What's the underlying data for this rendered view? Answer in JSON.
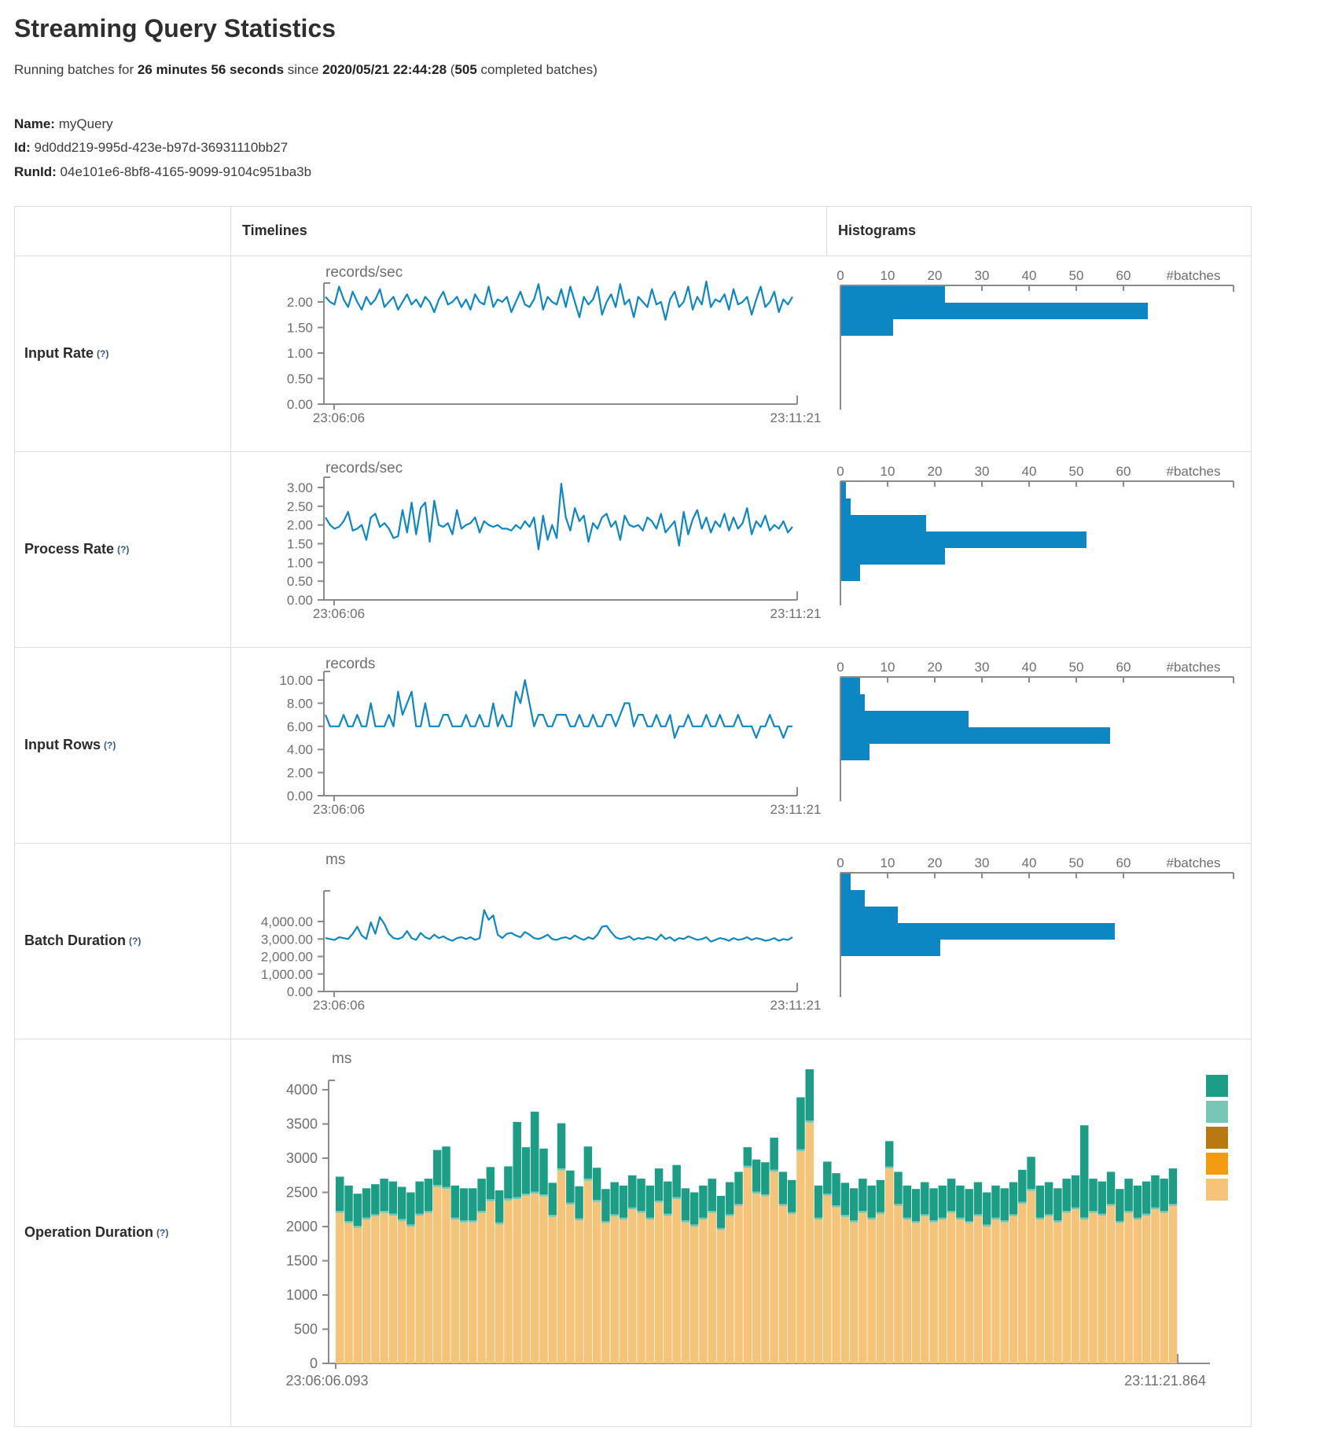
{
  "page": {
    "title": "Streaming Query Statistics"
  },
  "status_line": {
    "prefix": "Running batches for ",
    "duration": "26 minutes 56 seconds",
    "middle": " since ",
    "start_time": "2020/05/21 22:44:28",
    "paren_open": " (",
    "batches_count": "505",
    "suffix": " completed batches)"
  },
  "query_info": {
    "name_label": "Name:",
    "name": " myQuery",
    "id_label": "Id:",
    "id": " 9d0dd219-995d-423e-b97d-36931110bb27",
    "runid_label": "RunId:",
    "run_id": " 04e101e6-8bf8-4165-9099-9104c951ba3b"
  },
  "table": {
    "timelines_header": "Timelines",
    "histograms_header": "Histograms"
  },
  "colors": {
    "blue": "#0d87c4",
    "teal": "#1b9e85",
    "light_teal": "#78c7b5",
    "olive": "#b87a10",
    "orange": "#f39c12",
    "light_orange": "#f6c478",
    "axis": "#8a8a8a",
    "tick_text": "#6e6e6e"
  },
  "chart_data": [
    {
      "type": "line",
      "row_label": "Input Rate",
      "help": "(?)",
      "unit": "records/sec",
      "x_start": "23:06:06",
      "x_end": "23:11:21",
      "y_ticks": [
        "0.00",
        "0.50",
        "1.00",
        "1.50",
        "2.00"
      ],
      "y_top_value": 2.0,
      "values": [
        2.1,
        2.0,
        1.95,
        2.3,
        2.05,
        1.9,
        2.2,
        2.0,
        1.85,
        2.1,
        1.95,
        2.05,
        2.25,
        1.9,
        2.0,
        2.1,
        1.85,
        2.0,
        2.15,
        1.95,
        2.05,
        1.9,
        2.1,
        2.0,
        1.8,
        2.05,
        2.2,
        1.95,
        2.0,
        2.1,
        1.9,
        2.05,
        1.85,
        2.15,
        2.0,
        1.95,
        2.3,
        1.9,
        2.05,
        2.0,
        2.1,
        1.8,
        2.0,
        2.2,
        1.95,
        1.9,
        2.05,
        2.35,
        1.85,
        2.1,
        2.0,
        1.95,
        2.25,
        1.9,
        2.3,
        2.0,
        1.7,
        2.1,
        1.95,
        2.05,
        2.3,
        1.75,
        2.0,
        2.15,
        1.9,
        2.35,
        1.95,
        2.05,
        1.7,
        2.1,
        2.0,
        1.9,
        2.25,
        1.95,
        2.0,
        1.65,
        2.05,
        2.2,
        1.9,
        2.0,
        2.3,
        1.85,
        2.1,
        1.95,
        2.4,
        1.9,
        2.05,
        2.0,
        2.15,
        1.85,
        2.25,
        1.95,
        2.0,
        2.1,
        1.75,
        2.05,
        2.3,
        1.9,
        2.0,
        2.2,
        1.8,
        2.05,
        1.95,
        2.1
      ],
      "histogram": {
        "axis_ticks": [
          "0",
          "10",
          "20",
          "30",
          "40",
          "50",
          "60"
        ],
        "axis_unit": "#batches",
        "bars": [
          22,
          65,
          11
        ]
      }
    },
    {
      "type": "line",
      "row_label": "Process Rate",
      "help": "(?)",
      "unit": "records/sec",
      "x_start": "23:06:06",
      "x_end": "23:11:21",
      "y_ticks": [
        "0.00",
        "0.50",
        "1.00",
        "1.50",
        "2.00",
        "2.50",
        "3.00"
      ],
      "y_top_value": 3.0,
      "values": [
        2.2,
        2.0,
        1.9,
        1.95,
        2.1,
        2.35,
        1.85,
        1.9,
        2.0,
        1.6,
        2.2,
        2.3,
        1.95,
        2.05,
        1.9,
        1.65,
        1.7,
        2.4,
        1.8,
        2.6,
        1.75,
        2.45,
        2.6,
        1.55,
        2.65,
        2.0,
        1.95,
        2.05,
        1.75,
        2.4,
        1.9,
        2.0,
        2.05,
        2.2,
        1.8,
        2.1,
        2.0,
        1.95,
        2.0,
        1.9,
        1.9,
        1.85,
        2.0,
        1.9,
        2.1,
        1.95,
        2.2,
        1.35,
        2.25,
        1.6,
        2.0,
        1.65,
        3.1,
        2.2,
        1.85,
        2.45,
        2.1,
        2.25,
        1.55,
        2.05,
        1.9,
        2.2,
        2.3,
        1.95,
        2.1,
        1.6,
        2.25,
        2.0,
        1.95,
        2.0,
        1.85,
        2.2,
        2.1,
        1.9,
        2.3,
        1.8,
        1.95,
        2.1,
        1.45,
        2.35,
        1.75,
        2.15,
        2.4,
        1.9,
        2.2,
        1.8,
        2.1,
        1.95,
        2.3,
        1.85,
        2.2,
        1.9,
        2.05,
        2.45,
        1.75,
        2.1,
        1.95,
        2.25,
        1.85,
        2.0,
        1.9,
        2.1,
        1.8,
        1.95
      ],
      "histogram": {
        "axis_ticks": [
          "0",
          "10",
          "20",
          "30",
          "40",
          "50",
          "60"
        ],
        "axis_unit": "#batches",
        "bars": [
          1,
          2,
          18,
          52,
          22,
          4
        ]
      }
    },
    {
      "type": "line",
      "row_label": "Input Rows",
      "help": "(?)",
      "unit": "records",
      "x_start": "23:06:06",
      "x_end": "23:11:21",
      "y_ticks": [
        "0.00",
        "2.00",
        "4.00",
        "6.00",
        "8.00",
        "10.00"
      ],
      "y_top_value": 10.0,
      "values": [
        7,
        6,
        6,
        6,
        7,
        6,
        6,
        7,
        6,
        6,
        8,
        6,
        6,
        6,
        7,
        6,
        9,
        7,
        8,
        9,
        6,
        6,
        8,
        6,
        6,
        6,
        7,
        7,
        6,
        6,
        6,
        7,
        6,
        6,
        7,
        6,
        6,
        8,
        6,
        7,
        6,
        6,
        9,
        8,
        10,
        8,
        6,
        7,
        7,
        6,
        6,
        7,
        7,
        7,
        6,
        6,
        7,
        6,
        6,
        7,
        6,
        6,
        7,
        7,
        6,
        7,
        8,
        8,
        6,
        7,
        7,
        6,
        6,
        7,
        6,
        6,
        7,
        5,
        6,
        6,
        7,
        6,
        6,
        6,
        7,
        6,
        6,
        7,
        6,
        6,
        6,
        7,
        6,
        6,
        6,
        5,
        6,
        6,
        7,
        6,
        6,
        5,
        6,
        6
      ],
      "histogram": {
        "axis_ticks": [
          "0",
          "10",
          "20",
          "30",
          "40",
          "50",
          "60"
        ],
        "axis_unit": "#batches",
        "bars": [
          4,
          5,
          27,
          57,
          6
        ]
      }
    },
    {
      "type": "line",
      "row_label": "Batch Duration",
      "help": "(?)",
      "unit": "ms",
      "x_start": "23:06:06",
      "x_end": "23:11:21",
      "y_ticks": [
        "0.00",
        "1,000.00",
        "2,000.00",
        "3,000.00",
        "4,000.00"
      ],
      "y_top_value": 4000,
      "values": [
        3050,
        3000,
        2950,
        3100,
        3050,
        3000,
        3300,
        3700,
        3200,
        3000,
        3950,
        3300,
        4250,
        3850,
        3300,
        3050,
        3000,
        3100,
        3450,
        3050,
        2950,
        3350,
        3100,
        3000,
        3250,
        3050,
        3150,
        3000,
        2900,
        3050,
        3100,
        3000,
        3100,
        2950,
        3050,
        4650,
        4100,
        4350,
        3250,
        3050,
        3300,
        3350,
        3200,
        3100,
        3400,
        3250,
        3050,
        3000,
        3100,
        3250,
        3000,
        2950,
        3050,
        3100,
        3000,
        3200,
        3050,
        2950,
        3100,
        3000,
        3250,
        3700,
        3750,
        3400,
        3100,
        3000,
        3050,
        3150,
        2950,
        3050,
        3000,
        3100,
        3050,
        2950,
        3250,
        3000,
        3100,
        2900,
        3050,
        3000,
        3150,
        3050,
        2950,
        3000,
        3100,
        2850,
        2950,
        3050,
        3000,
        2900,
        3050,
        2950,
        3000,
        3100,
        2950,
        3050,
        3000,
        2900,
        2950,
        3050,
        2900,
        3000,
        2950,
        3100
      ],
      "histogram": {
        "axis_ticks": [
          "0",
          "10",
          "20",
          "30",
          "40",
          "50",
          "60"
        ],
        "axis_unit": "#batches",
        "bars": [
          2,
          5,
          12,
          58,
          21
        ]
      }
    },
    {
      "type": "stacked_bar",
      "row_label": "Operation Duration",
      "help": "(?)",
      "unit": "ms",
      "x_start": "23:06:06.093",
      "x_end": "23:11:21.864",
      "y_ticks": [
        "0",
        "500",
        "1000",
        "1500",
        "2000",
        "2500",
        "3000",
        "3500",
        "4000"
      ],
      "y_top_value": 4000,
      "legend_colors": [
        "#1b9e85",
        "#78c7b5",
        "#b87a10",
        "#f39c12",
        "#f6c478"
      ],
      "bars": {
        "sliver": 30,
        "base": [
          2200,
          2050,
          1980,
          2100,
          2150,
          2200,
          2160,
          2080,
          2000,
          2160,
          2200,
          2580,
          2550,
          2100,
          2060,
          2060,
          2200,
          2370,
          2030,
          2380,
          2400,
          2450,
          2480,
          2440,
          2140,
          2820,
          2320,
          2090,
          2670,
          2360,
          2050,
          2150,
          2100,
          2250,
          2200,
          2100,
          2350,
          2160,
          2400,
          2060,
          2000,
          2100,
          2200,
          1950,
          2150,
          2300,
          2860,
          2480,
          2440,
          2800,
          2300,
          2180,
          3100,
          3520,
          2100,
          2450,
          2280,
          2140,
          2060,
          2200,
          2100,
          2180,
          2850,
          2300,
          2100,
          2050,
          2150,
          2060,
          2100,
          2200,
          2100,
          2050,
          2150,
          2000,
          2100,
          2060,
          2150,
          2330,
          2520,
          2100,
          2150,
          2060,
          2200,
          2250,
          2100,
          2200,
          2160,
          2300,
          2050,
          2200,
          2100,
          2160,
          2250,
          2200,
          2300
        ],
        "total": [
          2730,
          2600,
          2480,
          2560,
          2620,
          2700,
          2660,
          2580,
          2500,
          2660,
          2700,
          3120,
          3170,
          2600,
          2560,
          2560,
          2700,
          2870,
          2530,
          2880,
          3530,
          3160,
          3680,
          3140,
          2640,
          3510,
          2820,
          2590,
          3170,
          2860,
          2550,
          2650,
          2600,
          2750,
          2700,
          2600,
          2850,
          2660,
          2900,
          2560,
          2500,
          2600,
          2700,
          2450,
          2650,
          2800,
          3160,
          2980,
          2940,
          3300,
          2800,
          2680,
          3890,
          4300,
          2600,
          2950,
          2780,
          2640,
          2560,
          2700,
          2600,
          2680,
          3250,
          2800,
          2600,
          2550,
          2650,
          2560,
          2600,
          2700,
          2600,
          2550,
          2650,
          2500,
          2600,
          2560,
          2650,
          2830,
          3020,
          2600,
          2650,
          2560,
          2700,
          2750,
          3480,
          2700,
          2660,
          2800,
          2550,
          2700,
          2600,
          2660,
          2750,
          2700,
          2850
        ]
      }
    }
  ]
}
